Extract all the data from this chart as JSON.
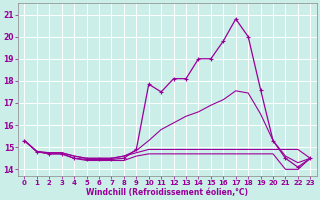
{
  "xlabel": "Windchill (Refroidissement éolien,°C)",
  "bg_color": "#cceee8",
  "grid_color": "#ffffff",
  "line_color": "#990099",
  "xlim": [
    -0.5,
    23.5
  ],
  "ylim": [
    13.7,
    21.5
  ],
  "yticks": [
    14,
    15,
    16,
    17,
    18,
    19,
    20,
    21
  ],
  "xticks": [
    0,
    1,
    2,
    3,
    4,
    5,
    6,
    7,
    8,
    9,
    10,
    11,
    12,
    13,
    14,
    15,
    16,
    17,
    18,
    19,
    20,
    21,
    22,
    23
  ],
  "x": [
    0,
    1,
    2,
    3,
    4,
    5,
    6,
    7,
    8,
    9,
    10,
    11,
    12,
    13,
    14,
    15,
    16,
    17,
    18,
    19,
    20,
    21,
    22,
    23
  ],
  "line_main": [
    15.3,
    14.8,
    14.7,
    14.7,
    14.5,
    14.45,
    14.45,
    14.45,
    14.5,
    14.9,
    17.85,
    17.5,
    18.1,
    18.1,
    19.0,
    19.0,
    19.8,
    20.8,
    20.0,
    17.6,
    15.3,
    14.5,
    14.1,
    14.5
  ],
  "line_grad": [
    15.3,
    14.8,
    14.75,
    14.75,
    14.6,
    14.5,
    14.5,
    14.5,
    14.6,
    14.85,
    15.3,
    15.8,
    16.1,
    16.4,
    16.6,
    16.9,
    17.15,
    17.55,
    17.45,
    16.5,
    15.3,
    14.6,
    14.3,
    14.5
  ],
  "line_flat": [
    15.3,
    14.8,
    14.75,
    14.75,
    14.6,
    14.5,
    14.5,
    14.5,
    14.6,
    14.75,
    14.9,
    14.9,
    14.9,
    14.9,
    14.9,
    14.9,
    14.9,
    14.9,
    14.9,
    14.9,
    14.9,
    14.9,
    14.9,
    14.5
  ],
  "line_bot": [
    15.3,
    14.8,
    14.7,
    14.7,
    14.5,
    14.4,
    14.4,
    14.4,
    14.4,
    14.6,
    14.7,
    14.7,
    14.7,
    14.7,
    14.7,
    14.7,
    14.7,
    14.7,
    14.7,
    14.7,
    14.7,
    14.0,
    14.0,
    14.5
  ]
}
